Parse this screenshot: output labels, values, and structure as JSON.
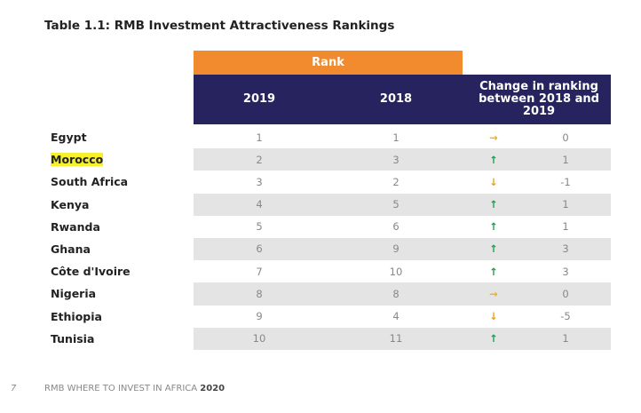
{
  "title": "Table 1.1: RMB Investment Attractiveness Rankings",
  "header": {
    "rank": "Rank",
    "col2019": "2019",
    "col2018": "2018",
    "change": "Change in ranking between 2018 and 2019"
  },
  "colors": {
    "rank_header": "#f28a2e",
    "main_header": "#26235f",
    "up": "#1fa04a",
    "down": "#f0a020",
    "flat": "#f0b020",
    "highlight": "#f6f12c"
  },
  "rows": [
    {
      "country": "Egypt",
      "r2019": "1",
      "r2018": "1",
      "arrow": "right-arrow-icon",
      "change": "0"
    },
    {
      "country": "Morocco",
      "r2019": "2",
      "r2018": "3",
      "arrow": "up-arrow-icon",
      "change": "1",
      "highlighted": true
    },
    {
      "country": "South Africa",
      "r2019": "3",
      "r2018": "2",
      "arrow": "down-arrow-icon",
      "change": "-1"
    },
    {
      "country": "Kenya",
      "r2019": "4",
      "r2018": "5",
      "arrow": "up-arrow-icon",
      "change": "1"
    },
    {
      "country": "Rwanda",
      "r2019": "5",
      "r2018": "6",
      "arrow": "up-arrow-icon",
      "change": "1"
    },
    {
      "country": "Ghana",
      "r2019": "6",
      "r2018": "9",
      "arrow": "up-arrow-icon",
      "change": "3"
    },
    {
      "country": "Côte d'Ivoire",
      "r2019": "7",
      "r2018": "10",
      "arrow": "up-arrow-icon",
      "change": "3"
    },
    {
      "country": "Nigeria",
      "r2019": "8",
      "r2018": "8",
      "arrow": "right-arrow-icon",
      "change": "0"
    },
    {
      "country": "Ethiopia",
      "r2019": "9",
      "r2018": "4",
      "arrow": "down-arrow-icon",
      "change": "-5"
    },
    {
      "country": "Tunisia",
      "r2019": "10",
      "r2018": "11",
      "arrow": "up-arrow-icon",
      "change": "1"
    }
  ],
  "footer": {
    "page": "7",
    "text": "RMB WHERE TO INVEST IN AFRICA ",
    "year": "2020"
  }
}
